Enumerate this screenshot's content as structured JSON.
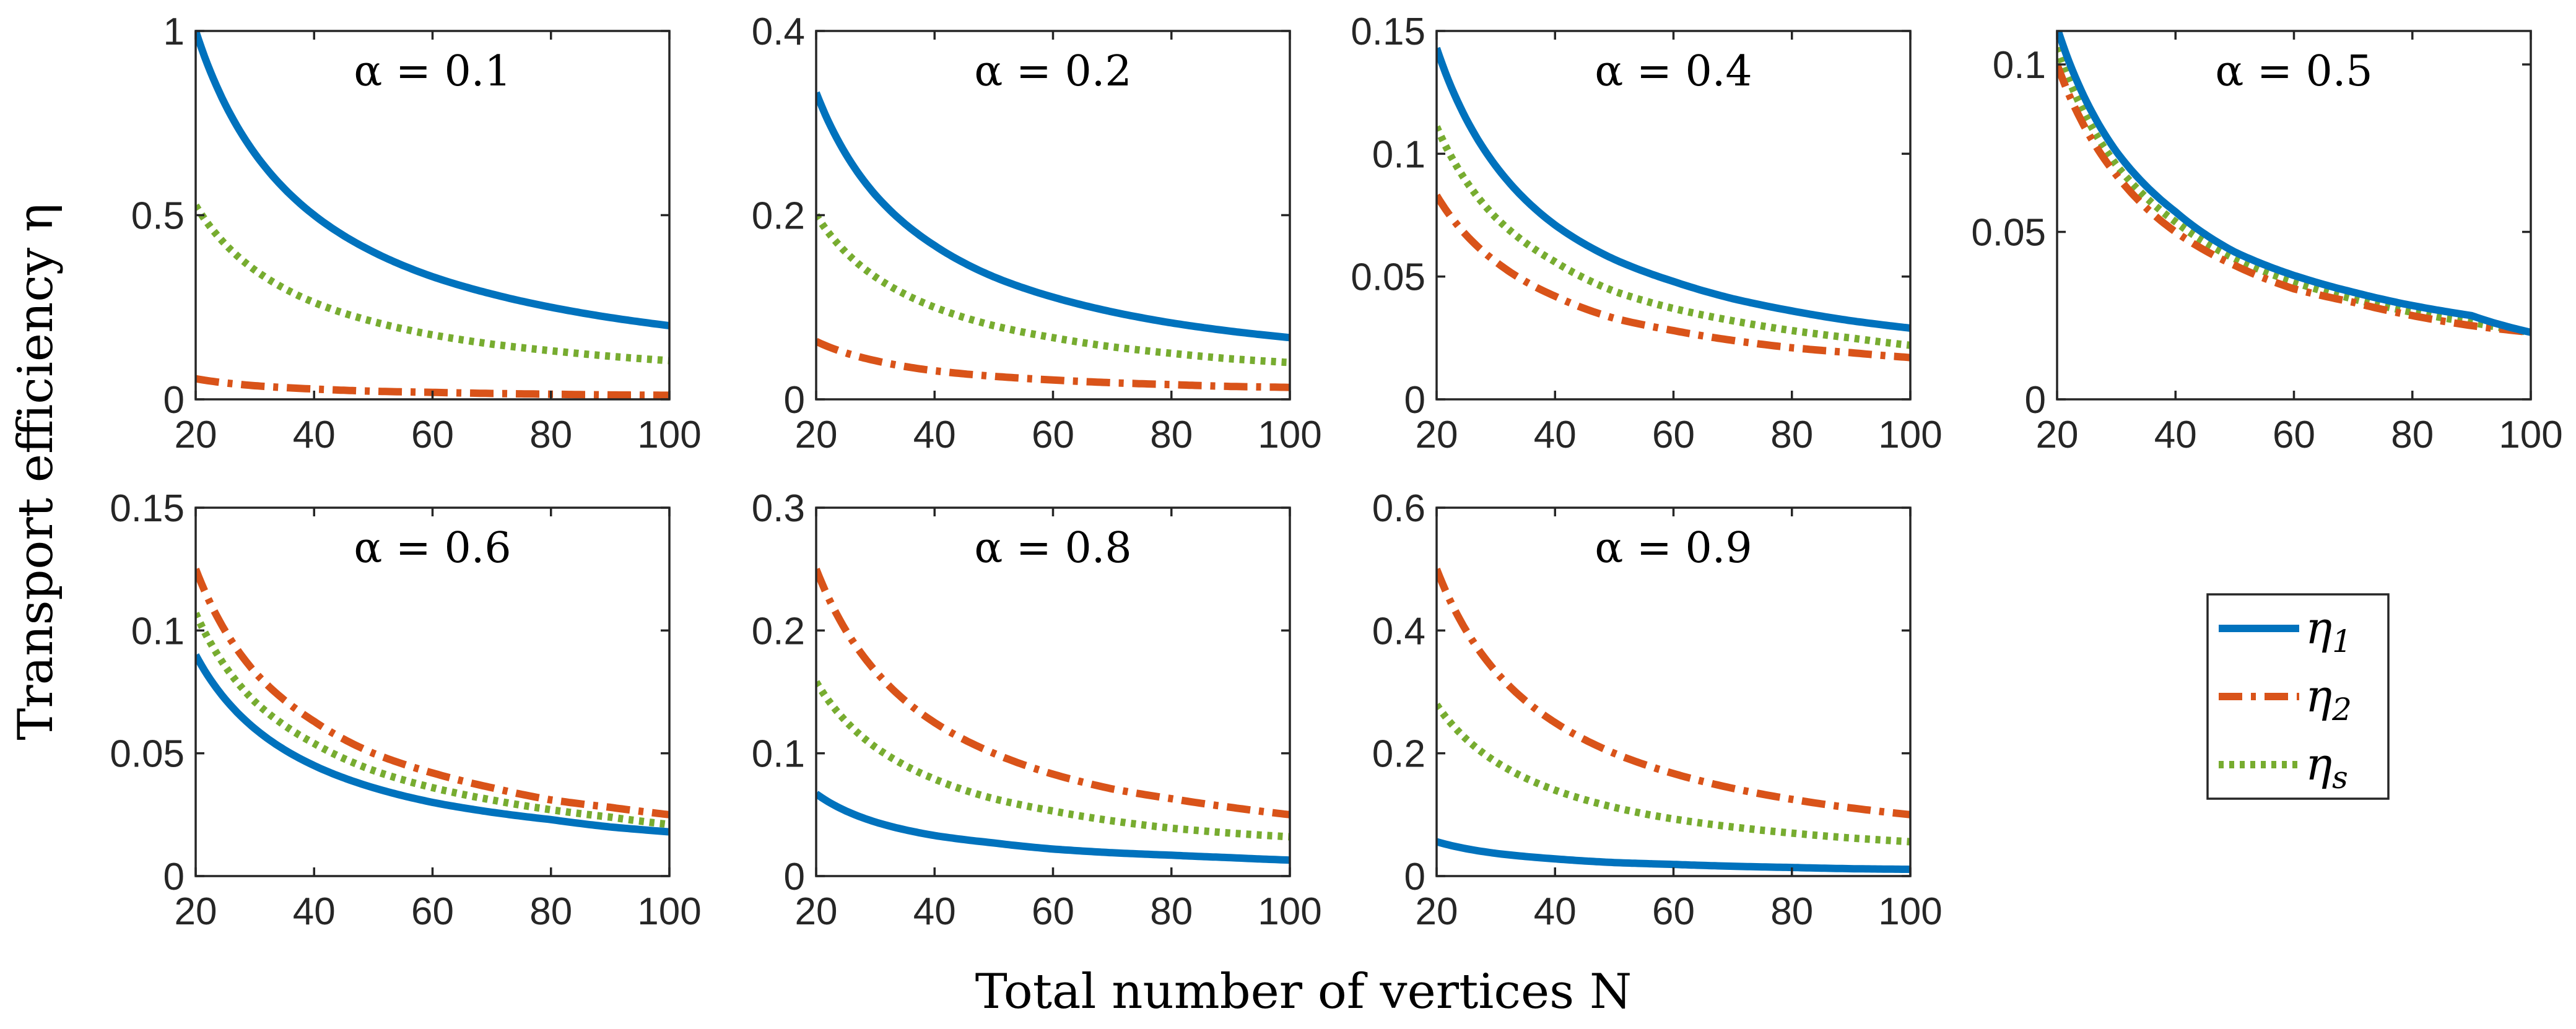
{
  "chart_data": {
    "type": "line",
    "ylabel": "Transport efficiency η",
    "xlabel": "Total number of vertices N",
    "legend": {
      "placement": "right of bottom row",
      "entries": [
        {
          "series": "eta1",
          "symbol": "η",
          "sub": "1"
        },
        {
          "series": "eta2",
          "symbol": "η",
          "sub": "2"
        },
        {
          "series": "etas",
          "symbol": "η",
          "sub": "s"
        }
      ]
    },
    "series_style": {
      "eta1": {
        "color": "#0072BD",
        "dash": "solid"
      },
      "eta2": {
        "color": "#D95319",
        "dash": "dash-dot"
      },
      "etas": {
        "color": "#77AC30",
        "dash": "dotted"
      }
    },
    "x": [
      20,
      30,
      40,
      50,
      60,
      70,
      80,
      90,
      100
    ],
    "xlim": [
      20,
      100
    ],
    "xticks": [
      20,
      40,
      60,
      80,
      100
    ],
    "xtick_labels": [
      "20",
      "40",
      "60",
      "80",
      "100"
    ],
    "panels": [
      {
        "title": "α = 0.1",
        "alpha": "0.1",
        "ylim": [
          0,
          1
        ],
        "yticks": [
          0,
          0.5,
          1
        ],
        "ytick_labels": [
          "0",
          "0.5",
          "1"
        ],
        "series": [
          {
            "name": "eta1",
            "values": [
              1.0,
              0.667,
              0.5,
              0.4,
              0.333,
              0.286,
              0.25,
              0.222,
              0.2
            ]
          },
          {
            "name": "eta2",
            "values": [
              0.056,
              0.037,
              0.028,
              0.022,
              0.019,
              0.016,
              0.014,
              0.012,
              0.011
            ]
          },
          {
            "name": "etas",
            "values": [
              0.526,
              0.351,
              0.263,
              0.211,
              0.175,
              0.15,
              0.132,
              0.117,
              0.105
            ]
          }
        ]
      },
      {
        "title": "α = 0.2",
        "alpha": "0.2",
        "ylim": [
          0,
          0.4
        ],
        "yticks": [
          0,
          0.2,
          0.4
        ],
        "ytick_labels": [
          "0",
          "0.2",
          "0.4"
        ],
        "series": [
          {
            "name": "eta1",
            "values": [
              0.333,
              0.222,
              0.167,
              0.133,
              0.111,
              0.095,
              0.083,
              0.074,
              0.067
            ]
          },
          {
            "name": "eta2",
            "values": [
              0.063,
              0.042,
              0.031,
              0.025,
              0.021,
              0.018,
              0.016,
              0.014,
              0.013
            ]
          },
          {
            "name": "etas",
            "values": [
              0.2,
              0.133,
              0.1,
              0.08,
              0.067,
              0.057,
              0.05,
              0.044,
              0.04
            ]
          }
        ]
      },
      {
        "title": "α = 0.4",
        "alpha": "0.4",
        "ylim": [
          0,
          0.15
        ],
        "yticks": [
          0,
          0.05,
          0.1,
          0.15
        ],
        "ytick_labels": [
          "0",
          "0.05",
          "0.1",
          "0.15"
        ],
        "series": [
          {
            "name": "eta1",
            "values": [
              0.143,
              0.095,
              0.071,
              0.057,
              0.048,
              0.041,
              0.036,
              0.032,
              0.029
            ]
          },
          {
            "name": "eta2",
            "values": [
              0.083,
              0.056,
              0.042,
              0.033,
              0.028,
              0.024,
              0.021,
              0.019,
              0.017
            ]
          },
          {
            "name": "etas",
            "values": [
              0.111,
              0.074,
              0.056,
              0.044,
              0.037,
              0.032,
              0.028,
              0.025,
              0.022
            ]
          }
        ]
      },
      {
        "title": "α = 0.5",
        "alpha": "0.5",
        "ylim": [
          0,
          0.11
        ],
        "yticks": [
          0,
          0.05,
          0.1
        ],
        "ytick_labels": [
          "0",
          "0.05",
          "0.1"
        ],
        "series": [
          {
            "name": "eta1",
            "values": [
              0.111,
              0.074,
              0.056,
              0.044,
              0.037,
              0.032,
              0.028,
              0.025,
              0.02
            ]
          },
          {
            "name": "eta2",
            "values": [
              0.1,
              0.067,
              0.05,
              0.04,
              0.033,
              0.029,
              0.025,
              0.022,
              0.02
            ]
          },
          {
            "name": "etas",
            "values": [
              0.105,
              0.07,
              0.053,
              0.042,
              0.035,
              0.03,
              0.026,
              0.023,
              0.02
            ]
          }
        ]
      },
      {
        "title": "α = 0.6",
        "alpha": "0.6",
        "ylim": [
          0,
          0.15
        ],
        "yticks": [
          0,
          0.05,
          0.1,
          0.15
        ],
        "ytick_labels": [
          "0",
          "0.05",
          "0.1",
          "0.15"
        ],
        "series": [
          {
            "name": "eta1",
            "values": [
              0.09,
              0.06,
              0.045,
              0.036,
              0.03,
              0.026,
              0.023,
              0.02,
              0.018
            ]
          },
          {
            "name": "eta2",
            "values": [
              0.125,
              0.083,
              0.063,
              0.05,
              0.042,
              0.036,
              0.031,
              0.028,
              0.025
            ]
          },
          {
            "name": "etas",
            "values": [
              0.107,
              0.071,
              0.054,
              0.043,
              0.036,
              0.031,
              0.027,
              0.024,
              0.021
            ]
          }
        ]
      },
      {
        "title": "α = 0.8",
        "alpha": "0.8",
        "ylim": [
          0,
          0.3
        ],
        "yticks": [
          0,
          0.1,
          0.2,
          0.3
        ],
        "ytick_labels": [
          "0",
          "0.1",
          "0.2",
          "0.3"
        ],
        "series": [
          {
            "name": "eta1",
            "values": [
              0.067,
              0.044,
              0.033,
              0.027,
              0.022,
              0.019,
              0.017,
              0.015,
              0.013
            ]
          },
          {
            "name": "eta2",
            "values": [
              0.25,
              0.167,
              0.125,
              0.1,
              0.083,
              0.071,
              0.063,
              0.056,
              0.05
            ]
          },
          {
            "name": "etas",
            "values": [
              0.158,
              0.105,
              0.079,
              0.063,
              0.053,
              0.045,
              0.039,
              0.035,
              0.032
            ]
          }
        ]
      },
      {
        "title": "α = 0.9",
        "alpha": "0.9",
        "ylim": [
          0,
          0.6
        ],
        "yticks": [
          0,
          0.2,
          0.4,
          0.6
        ],
        "ytick_labels": [
          "0",
          "0.2",
          "0.4",
          "0.6"
        ],
        "series": [
          {
            "name": "eta1",
            "values": [
              0.056,
              0.037,
              0.028,
              0.022,
              0.019,
              0.016,
              0.014,
              0.012,
              0.011
            ]
          },
          {
            "name": "eta2",
            "values": [
              0.5,
              0.333,
              0.25,
              0.2,
              0.167,
              0.143,
              0.125,
              0.111,
              0.1
            ]
          },
          {
            "name": "etas",
            "values": [
              0.279,
              0.186,
              0.14,
              0.112,
              0.093,
              0.08,
              0.07,
              0.062,
              0.056
            ]
          }
        ]
      }
    ]
  }
}
